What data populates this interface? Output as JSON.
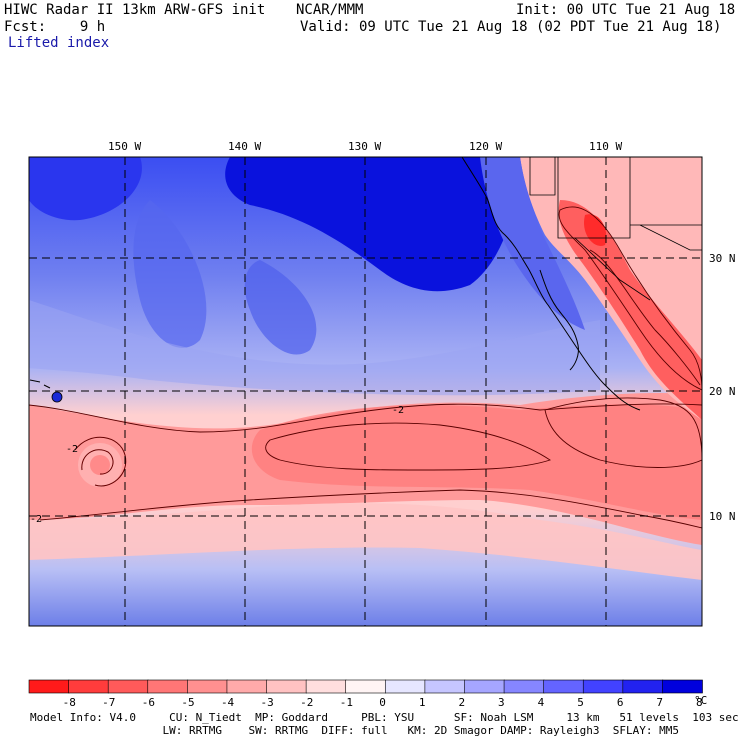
{
  "header": {
    "title": "HIWC Radar II 13km ARW-GFS init",
    "org": "NCAR/MMM",
    "init": "Init: 00 UTC Tue 21 Aug 18",
    "fcst": "Fcst:    9 h",
    "valid": "Valid: 09 UTC Tue 21 Aug 18 (02 PDT Tue 21 Aug 18)",
    "field": "Lifted index"
  },
  "map": {
    "lon_labels": [
      "150 W",
      "140 W",
      "130 W",
      "120 W",
      "110 W"
    ],
    "lat_labels": [
      "30 N",
      "20 N",
      "10 N"
    ],
    "contour_labels": [
      "-2",
      "-2",
      "-2"
    ]
  },
  "colorbar": {
    "ticks": [
      "-8",
      "-7",
      "-6",
      "-5",
      "-4",
      "-3",
      "-2",
      "-1",
      "0",
      "1",
      "2",
      "3",
      "4",
      "5",
      "6",
      "7",
      "8"
    ],
    "unit": "°C",
    "colors": [
      "#ff1a1a",
      "#ff3c3c",
      "#ff5a5a",
      "#ff7676",
      "#ff9090",
      "#ffaaaa",
      "#ffc2c2",
      "#ffdede",
      "#fff4f4",
      "#e6e6ff",
      "#c6c6ff",
      "#a6a6ff",
      "#8686ff",
      "#6464ff",
      "#4242ff",
      "#2222f0",
      "#0000dd"
    ]
  },
  "model_info": {
    "line1": "Model Info: V4.0     CU: N_Tiedt  MP: Goddard     PBL: YSU      SF: Noah LSM     13 km   51 levels  103 sec",
    "line2": "                    LW: RRTMG    SW: RRTMG  DIFF: full   KM: 2D Smagor DAMP: Rayleigh3  SFLAY: MM5"
  }
}
